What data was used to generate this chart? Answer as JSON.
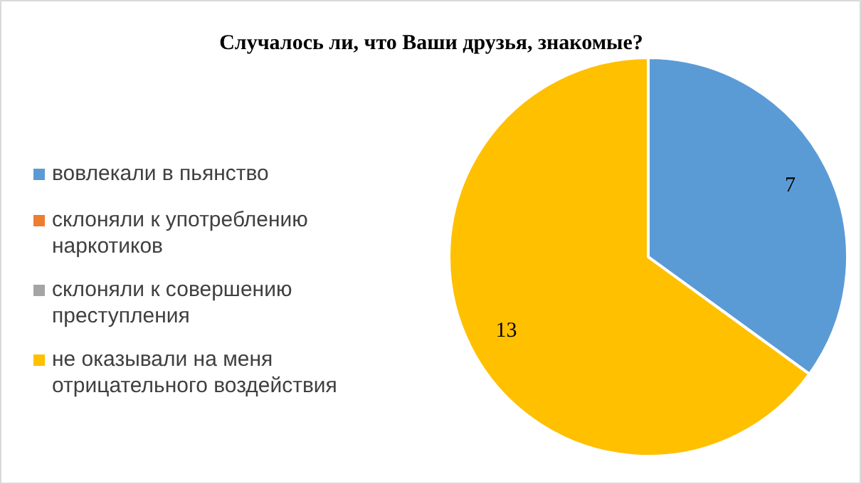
{
  "chart_data": {
    "type": "pie",
    "title": "Случалось ли, что Ваши друзья, знакомые?",
    "categories": [
      "вовлекали в пьянство",
      "склоняли к употреблению наркотиков",
      "склоняли к совершению преступления",
      "не оказывали на меня отрицательного воздействия"
    ],
    "values": [
      7,
      0,
      0,
      13
    ],
    "colors": [
      "#5b9bd5",
      "#ed7d31",
      "#a5a5a5",
      "#ffc000"
    ],
    "value_labels": [
      "7",
      null,
      null,
      "13"
    ],
    "legend": "left"
  }
}
